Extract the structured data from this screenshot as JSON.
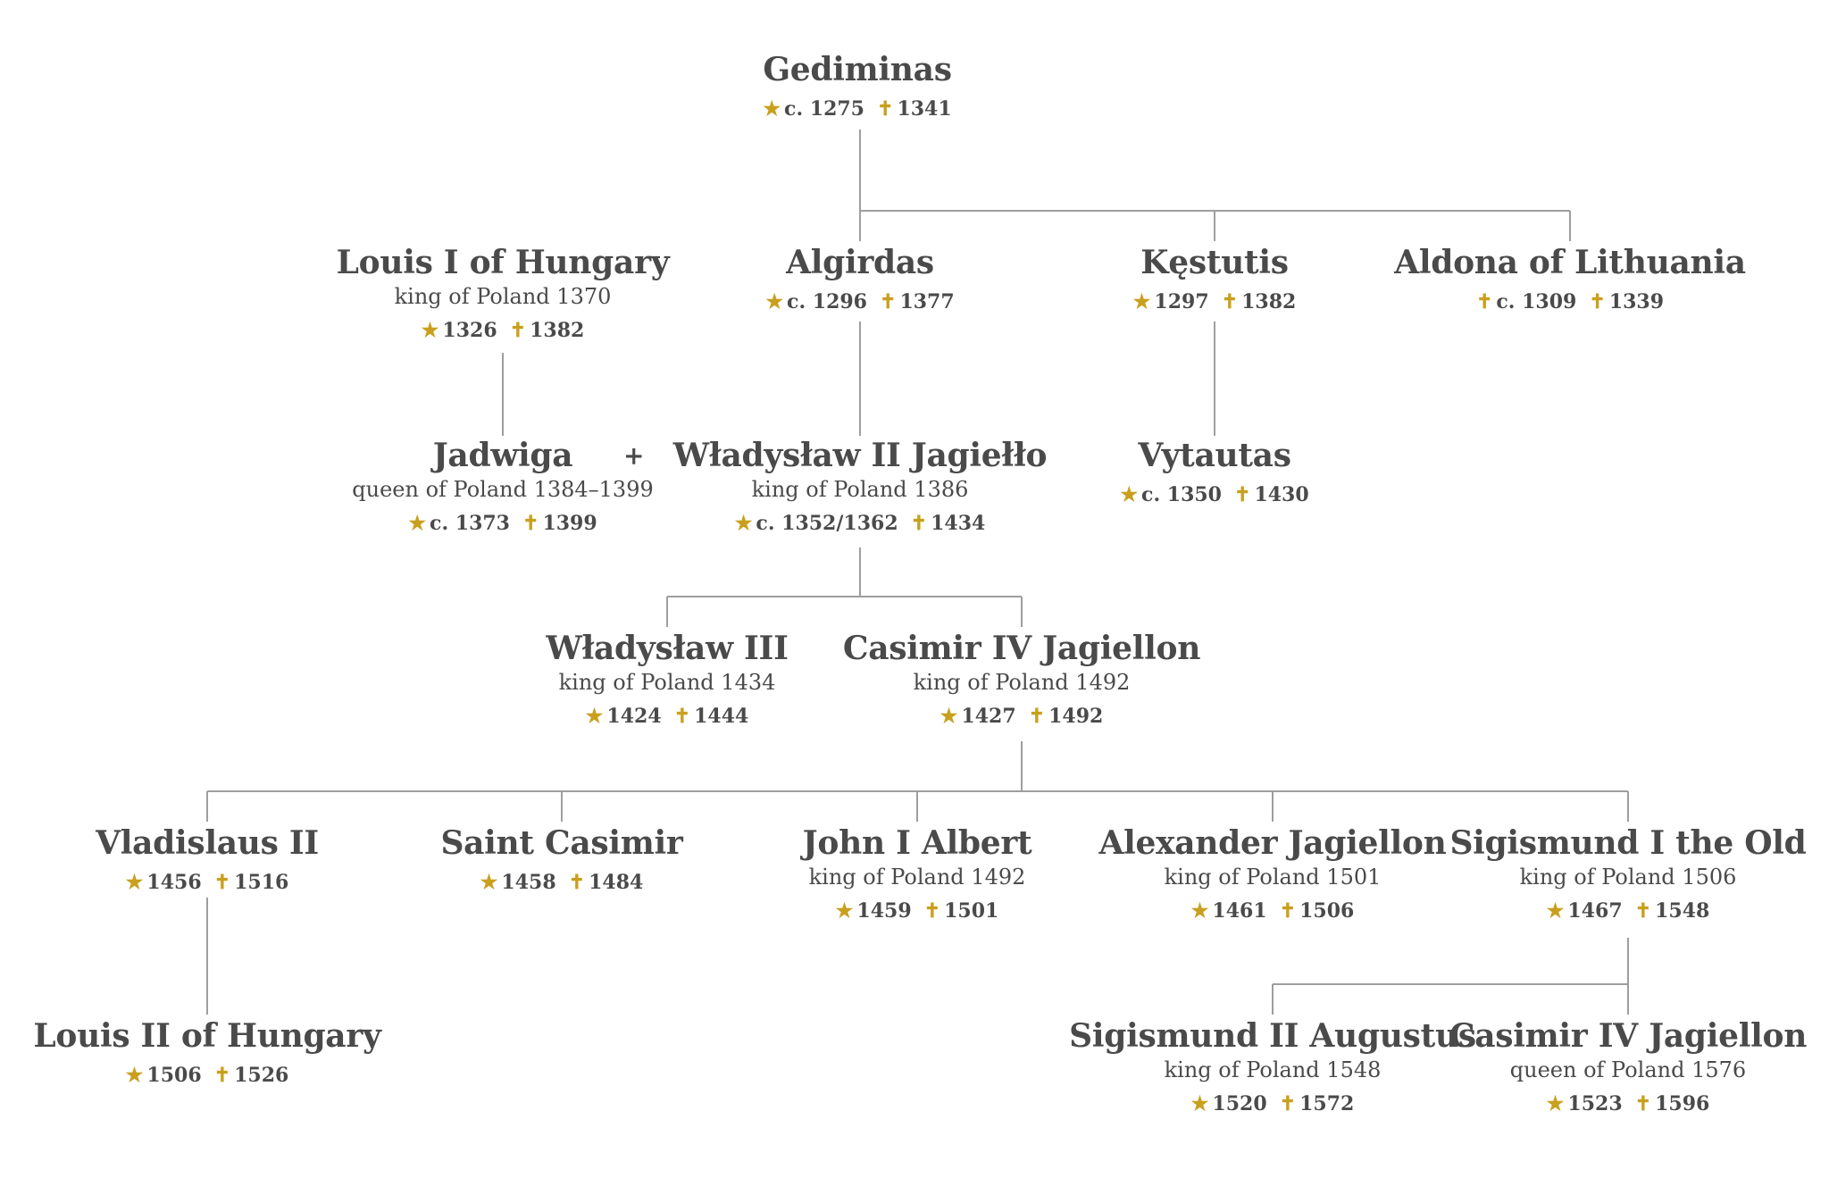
{
  "colors": {
    "text": "#4a4a4a",
    "accent": "#c9a01e",
    "line": "#9e9e9e"
  },
  "symbols": {
    "birth": "★",
    "death": "✝"
  },
  "people": {
    "gediminas": {
      "name": "Gediminas",
      "birth": "c. 1275",
      "death": "1341"
    },
    "louis1": {
      "name": "Louis I of Hungary",
      "title": "king of Poland 1370",
      "birth": "1326",
      "death": "1382"
    },
    "algirdas": {
      "name": "Algirdas",
      "birth": "c. 1296",
      "death": "1377"
    },
    "kestutis": {
      "name": "Kęstutis",
      "birth": "1297",
      "death": "1382"
    },
    "aldona": {
      "name": "Aldona of Lithuania",
      "death_first": "c. 1309",
      "death": "1339"
    },
    "jadwiga": {
      "name": "Jadwiga",
      "title": "queen of Poland 1384–1399",
      "birth": "c. 1373",
      "death": "1399"
    },
    "wladyslaw2": {
      "name": "Władysław II Jagiełło",
      "title": "king of Poland 1386",
      "birth": "c. 1352/1362",
      "death": "1434"
    },
    "vytautas": {
      "name": "Vytautas",
      "birth": "c. 1350",
      "death": "1430"
    },
    "wladyslaw3": {
      "name": "Władysław III",
      "title": "king of Poland 1434",
      "birth": "1424",
      "death": "1444"
    },
    "casimir4": {
      "name": "Casimir IV Jagiellon",
      "title": "king of Poland 1492",
      "birth": "1427",
      "death": "1492"
    },
    "vladislaus2": {
      "name": "Vladislaus II",
      "birth": "1456",
      "death": "1516"
    },
    "saintcasimir": {
      "name": "Saint Casimir",
      "birth": "1458",
      "death": "1484"
    },
    "johnalbert": {
      "name": "John I Albert",
      "title": "king of Poland 1492",
      "birth": "1459",
      "death": "1501"
    },
    "alexander": {
      "name": "Alexander Jagiellon",
      "title": "king of Poland 1501",
      "birth": "1461",
      "death": "1506"
    },
    "sigismund1": {
      "name": "Sigismund I the Old",
      "title": "king of Poland 1506",
      "birth": "1467",
      "death": "1548"
    },
    "louis2": {
      "name": "Louis II of Hungary",
      "birth": "1506",
      "death": "1526"
    },
    "sigismund2": {
      "name": "Sigismund II Augustus",
      "title": "king of Poland 1548",
      "birth": "1520",
      "death": "1572"
    },
    "casimir4b": {
      "name": "Casimir IV Jagiellon",
      "title": "queen of Poland 1576",
      "birth": "1523",
      "death": "1596"
    }
  },
  "spouse_marker": "+"
}
